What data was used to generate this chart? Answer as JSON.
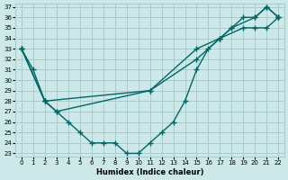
{
  "bg_color": "#cce8e8",
  "grid_color": "#aacccc",
  "line_color": "#006666",
  "xlabel": "Humidex (Indice chaleur)",
  "ylim": [
    23,
    37
  ],
  "xlim": [
    -0.5,
    22.5
  ],
  "yticks": [
    23,
    24,
    25,
    26,
    27,
    28,
    29,
    30,
    31,
    32,
    33,
    34,
    35,
    36,
    37
  ],
  "xticks": [
    0,
    1,
    2,
    3,
    4,
    5,
    6,
    7,
    8,
    9,
    10,
    11,
    12,
    13,
    14,
    15,
    16,
    17,
    18,
    19,
    20,
    21,
    22
  ],
  "line1_x": [
    0,
    1,
    2,
    3,
    4,
    5,
    6,
    7,
    8,
    9,
    10,
    11,
    12,
    13,
    14,
    15,
    16,
    17,
    18,
    19,
    20,
    21,
    22
  ],
  "line1_y": [
    33,
    31,
    28,
    27,
    26,
    25,
    24,
    24,
    24,
    23,
    23,
    24,
    25,
    26,
    28,
    31,
    33,
    34,
    35,
    36,
    36,
    37,
    36
  ],
  "line2_x": [
    0,
    2,
    11,
    15,
    17,
    18,
    20,
    21,
    22
  ],
  "line2_y": [
    33,
    28,
    29,
    33,
    34,
    35,
    36,
    37,
    36
  ],
  "line3_x": [
    0,
    2,
    3,
    11,
    15,
    17,
    19,
    20,
    21,
    22
  ],
  "line3_y": [
    33,
    28,
    27,
    29,
    32,
    34,
    35,
    35,
    35,
    36
  ],
  "marker": "+",
  "markersize": 4,
  "linewidth": 1.0
}
